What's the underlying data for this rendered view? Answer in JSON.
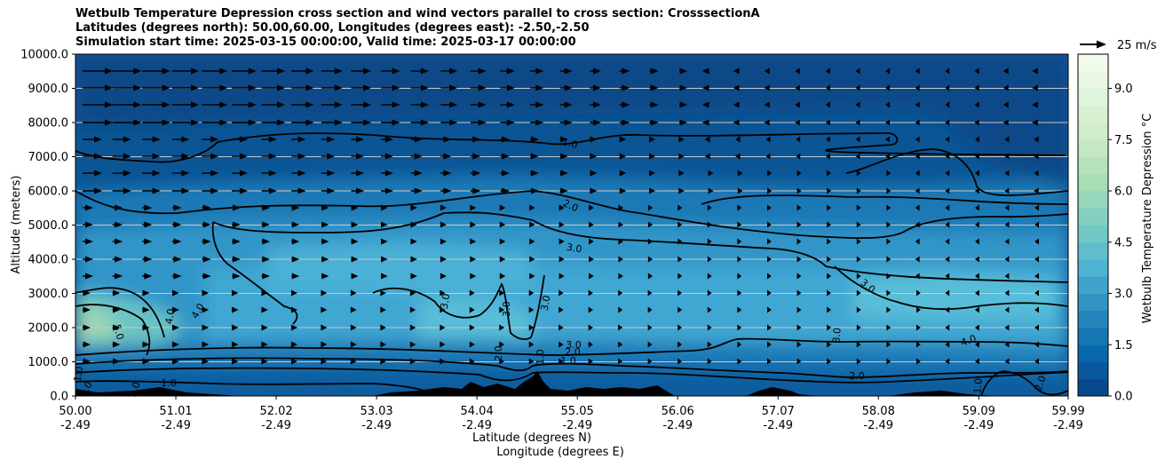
{
  "chart_data": {
    "type": "heatmap",
    "title_lines": [
      "Wetbulb Temperature Depression cross section and wind vectors parallel to cross section: CrosssectionA",
      "Latitudes (degrees north): 50.00,60.00, Longitudes (degrees east): -2.50,-2.50",
      "Simulation start time: 2025-03-15 00:00:00, Valid time: 2025-03-17 00:00:00"
    ],
    "ylabel": "Altitude (meters)",
    "xlabel": "Latitude (degrees N)",
    "xlabel2": "Longitude (degrees E)",
    "ylim": [
      0,
      10000
    ],
    "xlim": [
      50.0,
      59.99
    ],
    "y_ticks": [
      "0.0",
      "1000.0",
      "2000.0",
      "3000.0",
      "4000.0",
      "5000.0",
      "6000.0",
      "7000.0",
      "8000.0",
      "9000.0",
      "10000.0"
    ],
    "y_tick_values": [
      0,
      1000,
      2000,
      3000,
      4000,
      5000,
      6000,
      7000,
      8000,
      9000,
      10000
    ],
    "x_ticks": [
      {
        "lat": "50.00",
        "lon": "-2.49",
        "value": 50.0
      },
      {
        "lat": "51.01",
        "lon": "-2.49",
        "value": 51.01
      },
      {
        "lat": "52.02",
        "lon": "-2.49",
        "value": 52.02
      },
      {
        "lat": "53.03",
        "lon": "-2.49",
        "value": 53.03
      },
      {
        "lat": "54.04",
        "lon": "-2.49",
        "value": 54.04
      },
      {
        "lat": "55.05",
        "lon": "-2.49",
        "value": 55.05
      },
      {
        "lat": "56.06",
        "lon": "-2.49",
        "value": 56.06
      },
      {
        "lat": "57.07",
        "lon": "-2.49",
        "value": 57.07
      },
      {
        "lat": "58.08",
        "lon": "-2.49",
        "value": 58.08
      },
      {
        "lat": "59.09",
        "lon": "-2.49",
        "value": 59.09
      },
      {
        "lat": "59.99",
        "lon": "-2.49",
        "value": 59.99
      }
    ],
    "grid": "horizontal",
    "colorbar": {
      "label": "Wetbulb Temperature Depression °C",
      "ticks": [
        "0.0",
        "1.5",
        "3.0",
        "4.5",
        "6.0",
        "7.5",
        "9.0"
      ],
      "tick_values": [
        0,
        1.5,
        3.0,
        4.5,
        6.0,
        7.5,
        9.0
      ],
      "range": [
        0,
        10
      ],
      "colors": [
        "#084081",
        "#0868ac",
        "#2b8cbe",
        "#4eb3d3",
        "#7bccc4",
        "#a8ddb5",
        "#ccebc5",
        "#e0f3db",
        "#f7fcf0"
      ]
    },
    "wind_reference": {
      "label": "25 m/s"
    },
    "contour_labels": [
      "1.0",
      "2.0",
      "3.0",
      "3.0",
      "4.0",
      "4.0",
      "5.0",
      "3.0",
      "3.0",
      "3.0",
      "4.0",
      "3.0",
      "2.0",
      "1.0",
      "2.0",
      "3.0",
      "1.0",
      "2.0",
      "1.0",
      "2.0",
      "1.0",
      "1.0",
      "1.0",
      "1.0"
    ]
  }
}
